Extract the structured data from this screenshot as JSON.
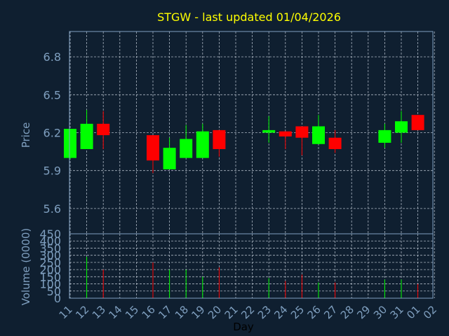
{
  "chart_data": [
    {
      "type": "candlestick",
      "title": "STGW - last updated 01/04/2026",
      "ylabel": "Price",
      "ylim": [
        5.4,
        7.0
      ],
      "yticks": [
        "6.8",
        "6.5",
        "6.2",
        "5.9",
        "5.6"
      ],
      "xticks": [
        "11",
        "12",
        "13",
        "14",
        "15",
        "16",
        "17",
        "18",
        "19",
        "20",
        "21",
        "22",
        "23",
        "24",
        "25",
        "26",
        "27",
        "28",
        "29",
        "30",
        "31",
        "01",
        "02"
      ],
      "colors": {
        "up": "#00ff00",
        "down": "#ff0000"
      },
      "candles": [
        {
          "x": "11",
          "open": 6.0,
          "high": 6.23,
          "low": 5.99,
          "close": 6.23
        },
        {
          "x": "12",
          "open": 6.07,
          "high": 6.38,
          "low": 6.07,
          "close": 6.27
        },
        {
          "x": "13",
          "open": 6.27,
          "high": 6.37,
          "low": 6.07,
          "close": 6.18
        },
        {
          "x": "16",
          "open": 6.18,
          "high": 6.18,
          "low": 5.88,
          "close": 5.98
        },
        {
          "x": "17",
          "open": 5.91,
          "high": 6.16,
          "low": 5.91,
          "close": 6.08
        },
        {
          "x": "18",
          "open": 6.0,
          "high": 6.26,
          "low": 6.0,
          "close": 6.15
        },
        {
          "x": "19",
          "open": 6.0,
          "high": 6.27,
          "low": 6.0,
          "close": 6.21
        },
        {
          "x": "20",
          "open": 6.22,
          "high": 6.22,
          "low": 6.01,
          "close": 6.07
        },
        {
          "x": "23",
          "open": 6.2,
          "high": 6.33,
          "low": 6.12,
          "close": 6.22
        },
        {
          "x": "24",
          "open": 6.21,
          "high": 6.21,
          "low": 6.07,
          "close": 6.17
        },
        {
          "x": "25",
          "open": 6.25,
          "high": 6.25,
          "low": 6.02,
          "close": 6.16
        },
        {
          "x": "26",
          "open": 6.11,
          "high": 6.34,
          "low": 6.11,
          "close": 6.25
        },
        {
          "x": "27",
          "open": 6.16,
          "high": 6.22,
          "low": 6.04,
          "close": 6.07
        },
        {
          "x": "30",
          "open": 6.12,
          "high": 6.27,
          "low": 6.08,
          "close": 6.22
        },
        {
          "x": "31",
          "open": 6.2,
          "high": 6.37,
          "low": 6.12,
          "close": 6.29
        },
        {
          "x": "01",
          "open": 6.34,
          "high": 6.34,
          "low": 6.22,
          "close": 6.22
        }
      ]
    },
    {
      "type": "bar",
      "ylabel": "Volume (0000)",
      "xlabel": "Day",
      "ylim": [
        0,
        450
      ],
      "yticks": [
        "450",
        "400",
        "350",
        "300",
        "250",
        "200",
        "150",
        "100",
        "50",
        "0"
      ],
      "xticks": [
        "11",
        "12",
        "13",
        "14",
        "15",
        "16",
        "17",
        "18",
        "19",
        "20",
        "21",
        "22",
        "23",
        "24",
        "25",
        "26",
        "27",
        "28",
        "29",
        "30",
        "31",
        "01",
        "02"
      ],
      "bars": [
        {
          "x": "11",
          "value": 0,
          "dir": "up"
        },
        {
          "x": "12",
          "value": 290,
          "dir": "up"
        },
        {
          "x": "13",
          "value": 200,
          "dir": "down"
        },
        {
          "x": "16",
          "value": 250,
          "dir": "down"
        },
        {
          "x": "17",
          "value": 200,
          "dir": "up"
        },
        {
          "x": "18",
          "value": 200,
          "dir": "up"
        },
        {
          "x": "19",
          "value": 150,
          "dir": "up"
        },
        {
          "x": "20",
          "value": 215,
          "dir": "down"
        },
        {
          "x": "23",
          "value": 140,
          "dir": "up"
        },
        {
          "x": "24",
          "value": 120,
          "dir": "down"
        },
        {
          "x": "25",
          "value": 165,
          "dir": "down"
        },
        {
          "x": "26",
          "value": 110,
          "dir": "up"
        },
        {
          "x": "27",
          "value": 110,
          "dir": "down"
        },
        {
          "x": "30",
          "value": 130,
          "dir": "up"
        },
        {
          "x": "31",
          "value": 130,
          "dir": "up"
        },
        {
          "x": "01",
          "value": 100,
          "dir": "down"
        }
      ]
    }
  ]
}
